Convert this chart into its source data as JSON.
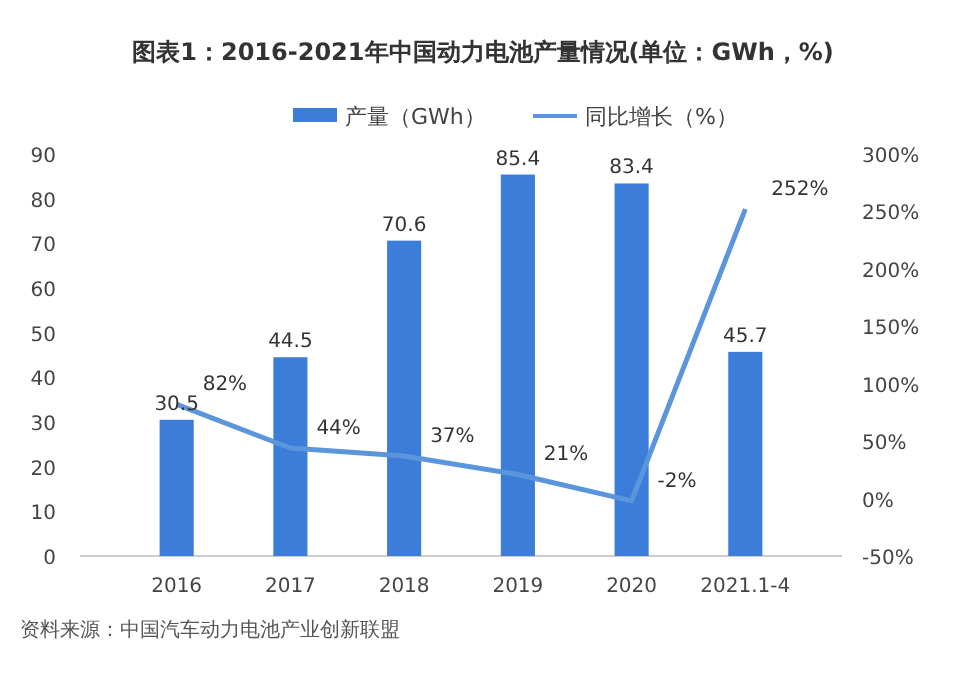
{
  "chart_data": {
    "type": "bar",
    "title": "图表1：2016-2021年中国动力电池产量情况(单位：GWh，%)",
    "categories": [
      "2016",
      "2017",
      "2018",
      "2019",
      "2020",
      "2021.1-4"
    ],
    "series": [
      {
        "name": "产量（GWh）",
        "color": "#3b7dd8",
        "values": [
          30.5,
          44.5,
          70.6,
          85.4,
          83.4,
          45.7
        ],
        "value_labels": [
          "30.5",
          "44.5",
          "70.6",
          "85.4",
          "83.4",
          "45.7"
        ]
      },
      {
        "name": "同比增长（%）",
        "type": "line",
        "axis": "y2",
        "color": "#5b95dc",
        "values": [
          82,
          44,
          37,
          21,
          -2,
          252
        ],
        "value_labels": [
          "82%",
          "44%",
          "37%",
          "21%",
          "-2%",
          "252%"
        ]
      }
    ],
    "ylim": [
      0,
      90
    ],
    "yticks": [
      0,
      10,
      20,
      30,
      40,
      50,
      60,
      70,
      80,
      90
    ],
    "y2lim": [
      -50,
      300
    ],
    "y2ticks": [
      {
        "value": -50,
        "label": "-50%"
      },
      {
        "value": 0,
        "label": "0%"
      },
      {
        "value": 50,
        "label": "50%"
      },
      {
        "value": 100,
        "label": "100%"
      },
      {
        "value": 150,
        "label": "150%"
      },
      {
        "value": 200,
        "label": "200%"
      },
      {
        "value": 250,
        "label": "250%"
      },
      {
        "value": 300,
        "label": "300%"
      }
    ],
    "grid": false,
    "legend": "top",
    "marker": "none",
    "line_style": "solid",
    "annotations": [
      "资料来源：中国汽车动力电池产业创新联盟"
    ]
  }
}
